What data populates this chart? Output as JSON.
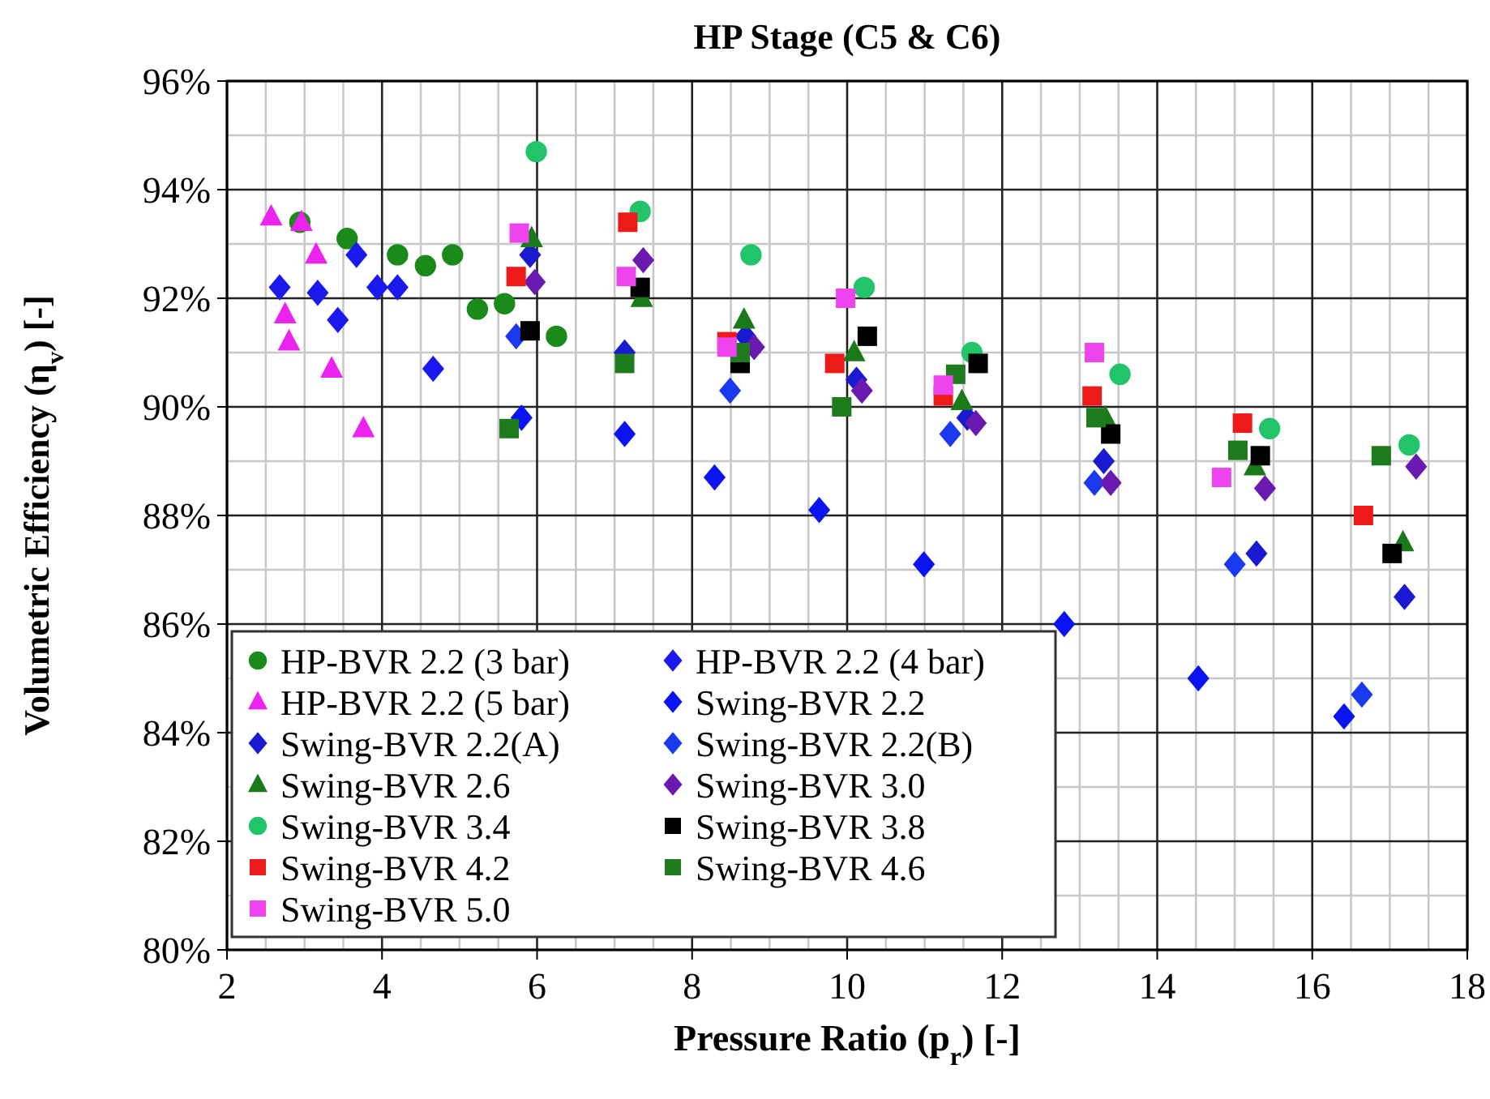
{
  "chart_data": {
    "type": "scatter",
    "title": "HP Stage (C5 & C6)",
    "xlabel": "Pressure Ratio (p$_{r}$) [-]",
    "ylabel": "Volumetric Efficiency (η$_{v}$) [-]",
    "xlim": [
      2,
      18
    ],
    "xticks": [
      2,
      4,
      6,
      8,
      10,
      12,
      14,
      16,
      18
    ],
    "ylim": [
      80,
      96
    ],
    "yticks": [
      {
        "value": 80,
        "label": "80%"
      },
      {
        "value": 82,
        "label": "82%"
      },
      {
        "value": 84,
        "label": "84%"
      },
      {
        "value": 86,
        "label": "86%"
      },
      {
        "value": 88,
        "label": "88%"
      },
      {
        "value": 90,
        "label": "90%"
      },
      {
        "value": 92,
        "label": "92%"
      },
      {
        "value": 94,
        "label": "94%"
      },
      {
        "value": 96,
        "label": "96%"
      }
    ],
    "grid": true,
    "legend": "bottom left",
    "series": [
      {
        "name": "HP-BVR 2.2 (3 bar)",
        "color": "#1a8a1a",
        "marker": "circle",
        "x": [
          2.94,
          3.55,
          4.2,
          4.56,
          4.91,
          5.23,
          5.58,
          6.25
        ],
        "values": [
          93.4,
          93.1,
          92.8,
          92.6,
          92.8,
          91.8,
          91.9,
          91.3
        ]
      },
      {
        "name": "HP-BVR 2.2 (4 bar)",
        "color": "#1a1aee",
        "marker": "diamond",
        "x": [
          2.68,
          3.17,
          3.43,
          3.67,
          3.94,
          4.2,
          4.66
        ],
        "values": [
          92.2,
          92.1,
          91.6,
          92.8,
          92.2,
          92.2,
          90.7
        ]
      },
      {
        "name": "HP-BVR 2.2 (5 bar)",
        "color": "#ee22ee",
        "marker": "triangle",
        "x": [
          2.57,
          2.96,
          3.15,
          2.75,
          2.8,
          3.35,
          3.76
        ],
        "values": [
          93.5,
          93.4,
          92.8,
          91.7,
          91.2,
          90.7,
          89.6
        ]
      },
      {
        "name": "Swing-BVR 2.2",
        "color": "#0a14f0",
        "marker": "diamond",
        "x": [
          5.8,
          7.13,
          8.29,
          9.64,
          10.99,
          12.8,
          14.53,
          16.41
        ],
        "values": [
          89.8,
          89.5,
          88.7,
          88.1,
          87.1,
          86.0,
          85.0,
          84.3
        ]
      },
      {
        "name": "Swing-BVR 2.2(A)",
        "color": "#1a1ad0",
        "marker": "diamond",
        "x": [
          5.91,
          7.13,
          8.69,
          10.12,
          11.55,
          13.31,
          15.28,
          17.19
        ],
        "values": [
          92.8,
          91.0,
          91.3,
          90.5,
          89.8,
          89.0,
          87.3,
          86.5
        ]
      },
      {
        "name": "Swing-BVR 2.2(B)",
        "color": "#1a3af0",
        "marker": "diamond",
        "x": [
          5.73,
          8.49,
          11.33,
          13.19,
          15.0,
          16.64
        ],
        "values": [
          91.3,
          90.3,
          89.5,
          88.6,
          87.1,
          84.7
        ]
      },
      {
        "name": "Swing-BVR 2.6",
        "color": "#1a7a1a",
        "marker": "triangle",
        "x": [
          5.93,
          7.35,
          8.67,
          10.09,
          11.48,
          13.33,
          15.26,
          17.17
        ],
        "values": [
          93.1,
          92.0,
          91.6,
          91.0,
          90.1,
          89.8,
          88.9,
          87.5
        ]
      },
      {
        "name": "Swing-BVR 3.0",
        "color": "#6a1ab0",
        "marker": "diamond",
        "x": [
          5.97,
          7.37,
          8.8,
          10.19,
          11.66,
          13.4,
          15.39,
          17.34
        ],
        "values": [
          92.3,
          92.7,
          91.1,
          90.3,
          89.7,
          88.6,
          88.5,
          88.9
        ]
      },
      {
        "name": "Swing-BVR 3.4",
        "color": "#22c46a",
        "marker": "circle",
        "x": [
          5.99,
          7.33,
          8.76,
          10.22,
          11.61,
          13.52,
          15.45,
          17.25
        ],
        "values": [
          94.7,
          93.6,
          92.8,
          92.2,
          91.0,
          90.6,
          89.6,
          89.3
        ]
      },
      {
        "name": "Swing-BVR 3.8",
        "color": "#000000",
        "marker": "square",
        "x": [
          5.91,
          7.33,
          8.62,
          10.26,
          11.69,
          13.4,
          15.33,
          17.03
        ],
        "values": [
          91.4,
          92.2,
          90.8,
          91.3,
          90.8,
          89.5,
          89.1,
          87.3
        ]
      },
      {
        "name": "Swing-BVR 4.2",
        "color": "#ee1a1a",
        "marker": "square",
        "x": [
          5.73,
          7.17,
          8.45,
          9.84,
          11.24,
          13.16,
          15.1,
          16.66
        ],
        "values": [
          92.4,
          93.4,
          91.2,
          90.8,
          90.2,
          90.2,
          89.7,
          88.0
        ]
      },
      {
        "name": "Swing-BVR 4.6",
        "color": "#1e7b1e",
        "marker": "square",
        "x": [
          5.64,
          7.13,
          8.62,
          9.93,
          11.4,
          13.21,
          15.04,
          16.89
        ],
        "values": [
          89.6,
          90.8,
          91.0,
          90.0,
          90.6,
          89.8,
          89.2,
          89.1
        ]
      },
      {
        "name": "Swing-BVR 5.0",
        "color": "#ee44ee",
        "marker": "square",
        "x": [
          5.77,
          7.15,
          8.45,
          9.98,
          11.24,
          13.19,
          14.83
        ],
        "values": [
          93.2,
          92.4,
          91.1,
          92.0,
          90.4,
          91.0,
          88.7
        ]
      }
    ]
  }
}
